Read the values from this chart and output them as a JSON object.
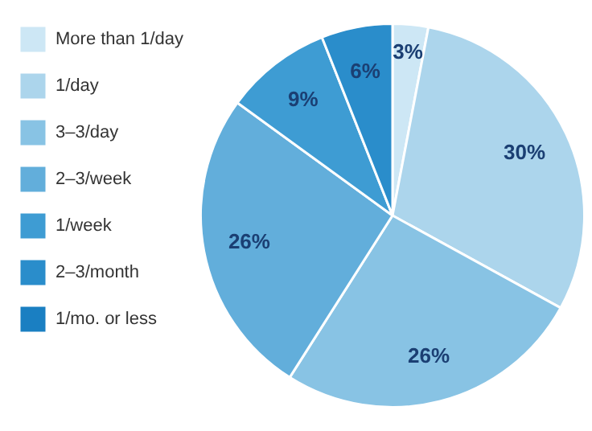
{
  "chart_data": {
    "type": "pie",
    "categories": [
      "More than 1/day",
      "1/day",
      "3–3/day",
      "2–3/week",
      "1/week",
      "2–3/month",
      "1/mo. or less"
    ],
    "values": [
      3,
      30,
      26,
      26,
      9,
      6,
      0
    ],
    "value_labels": [
      "3%",
      "30%",
      "26%",
      "26%",
      "9%",
      "6%",
      null
    ],
    "colors": [
      "#cde7f5",
      "#acd5ec",
      "#88c3e4",
      "#62aedb",
      "#3e9cd3",
      "#2a8dcb",
      "#1a7fc2"
    ],
    "legend": "left"
  }
}
